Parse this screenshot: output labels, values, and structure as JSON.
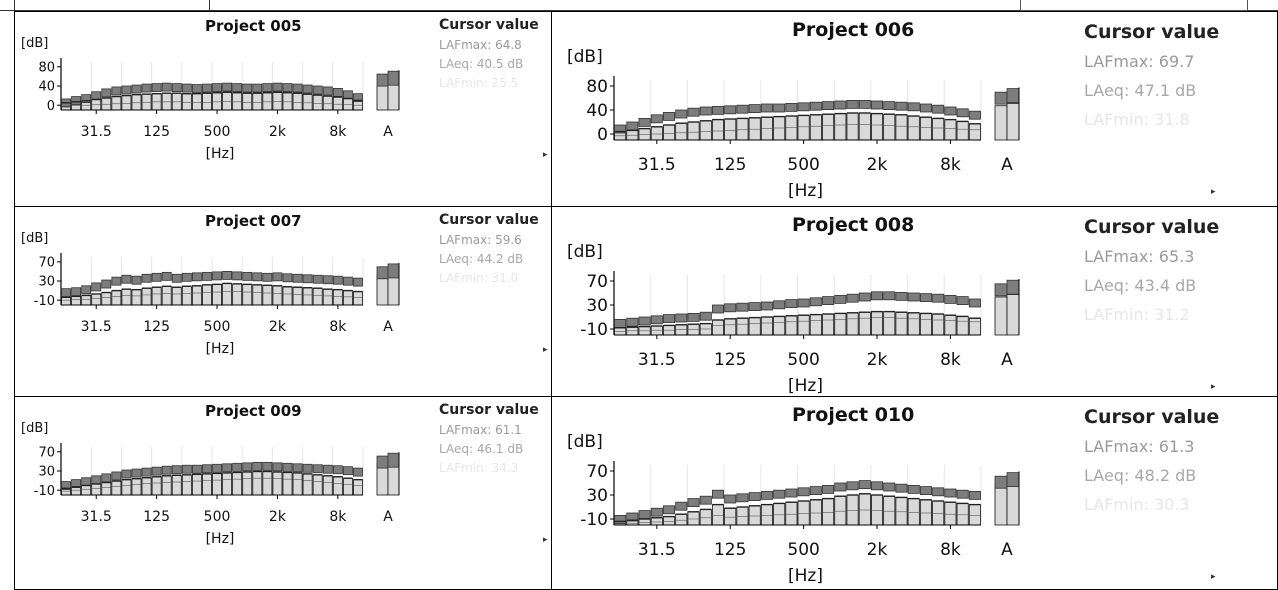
{
  "colors": {
    "max": "#7d7d7d",
    "eq": "#222222",
    "min": "#d9d9d9",
    "grid": "#e2e6ee",
    "axis": "#000000"
  },
  "arrow_glyph": "▸",
  "chart_data": [
    {
      "type": "bar",
      "title": "Project 005",
      "ylabel": "[dB]",
      "xlabel": "[Hz]",
      "y_ticks": [
        80,
        40,
        0
      ],
      "ylim": [
        -10,
        90
      ],
      "x_ticks": [
        "31.5",
        "125",
        "500",
        "2k",
        "8k"
      ],
      "total_label": "A",
      "series": [
        {
          "name": "LAFmax",
          "values": [
            13,
            18,
            22,
            28,
            34,
            38,
            40,
            42,
            44,
            45,
            46,
            45,
            44,
            43,
            44,
            45,
            46,
            45,
            44,
            44,
            45,
            46,
            45,
            44,
            42,
            40,
            38,
            35,
            30,
            24
          ]
        },
        {
          "name": "LAeq",
          "values": [
            5,
            7,
            9,
            12,
            15,
            18,
            20,
            22,
            23,
            24,
            25,
            25,
            24,
            24,
            25,
            26,
            27,
            26,
            25,
            25,
            26,
            27,
            26,
            25,
            23,
            21,
            19,
            17,
            14,
            10
          ]
        },
        {
          "name": "LAFmin",
          "values": [
            -2,
            -1,
            0,
            1,
            2,
            3,
            4,
            5,
            6,
            7,
            7,
            7,
            6,
            6,
            6,
            7,
            8,
            7,
            6,
            6,
            7,
            8,
            7,
            6,
            5,
            4,
            3,
            2,
            1,
            0
          ]
        }
      ],
      "total_bars": {
        "LAFmax": 64.8,
        "LAeq": 40.5,
        "LAFmin": 25.5
      },
      "cursor": {
        "title": "Cursor value",
        "max": "LAFmax: 64.8",
        "eq": "LAeq: 40.5 dB",
        "min": "LAFmin: 25.5"
      }
    },
    {
      "type": "bar",
      "title": "Project 006",
      "ylabel": "[dB]",
      "xlabel": "[Hz]",
      "y_ticks": [
        80,
        40,
        0
      ],
      "ylim": [
        -10,
        90
      ],
      "x_ticks": [
        "31.5",
        "125",
        "500",
        "2k",
        "8k"
      ],
      "total_label": "A",
      "series": [
        {
          "name": "LAFmax",
          "values": [
            15,
            20,
            26,
            32,
            36,
            40,
            43,
            45,
            46,
            47,
            48,
            49,
            50,
            50,
            51,
            52,
            53,
            54,
            55,
            56,
            56,
            55,
            54,
            53,
            52,
            50,
            48,
            45,
            42,
            38
          ]
        },
        {
          "name": "LAeq",
          "values": [
            4,
            6,
            9,
            12,
            15,
            18,
            20,
            22,
            24,
            25,
            26,
            27,
            28,
            29,
            30,
            31,
            32,
            33,
            34,
            35,
            35,
            34,
            33,
            32,
            30,
            28,
            26,
            24,
            21,
            17
          ]
        },
        {
          "name": "LAFmin",
          "values": [
            -3,
            -2,
            -1,
            0,
            1,
            2,
            3,
            4,
            5,
            6,
            7,
            8,
            9,
            10,
            11,
            12,
            13,
            14,
            15,
            16,
            16,
            15,
            14,
            13,
            12,
            11,
            10,
            9,
            8,
            7
          ]
        }
      ],
      "total_bars": {
        "LAFmax": 69.7,
        "LAeq": 47.1,
        "LAFmin": 31.8
      },
      "cursor": {
        "title": "Cursor value",
        "max": "LAFmax: 69.7",
        "eq": "LAeq: 47.1 dB",
        "min": "LAFmin: 31.8"
      }
    },
    {
      "type": "bar",
      "title": "Project 007",
      "ylabel": "[dB]",
      "xlabel": "[Hz]",
      "y_ticks": [
        70,
        30,
        -10
      ],
      "ylim": [
        -20,
        80
      ],
      "x_ticks": [
        "31.5",
        "125",
        "500",
        "2k",
        "8k"
      ],
      "total_label": "A",
      "series": [
        {
          "name": "LAFmax",
          "values": [
            14,
            16,
            20,
            26,
            32,
            38,
            42,
            40,
            44,
            46,
            48,
            44,
            46,
            47,
            48,
            49,
            50,
            49,
            48,
            47,
            46,
            47,
            45,
            44,
            43,
            42,
            41,
            40,
            38,
            36
          ]
        },
        {
          "name": "LAeq",
          "values": [
            -4,
            -2,
            0,
            3,
            6,
            10,
            13,
            12,
            15,
            17,
            19,
            17,
            19,
            20,
            22,
            23,
            25,
            24,
            23,
            22,
            21,
            20,
            18,
            17,
            16,
            15,
            13,
            12,
            10,
            8
          ]
        },
        {
          "name": "LAFmin",
          "values": [
            -10,
            -9,
            -8,
            -6,
            -4,
            -2,
            0,
            -1,
            1,
            3,
            4,
            3,
            4,
            5,
            6,
            7,
            8,
            8,
            7,
            6,
            5,
            4,
            3,
            2,
            1,
            0,
            -1,
            -2,
            -3,
            -4
          ]
        }
      ],
      "total_bars": {
        "LAFmax": 59.6,
        "LAeq": 44.2,
        "LAFmin": 31.0
      },
      "cursor": {
        "title": "Cursor value",
        "max": "LAFmax: 59.6",
        "eq": "LAeq: 44.2 dB",
        "min": "LAFmin: 31.0"
      }
    },
    {
      "type": "bar",
      "title": "Project 008",
      "ylabel": "[dB]",
      "xlabel": "[Hz]",
      "y_ticks": [
        70,
        30,
        -10
      ],
      "ylim": [
        -20,
        80
      ],
      "x_ticks": [
        "31.5",
        "125",
        "500",
        "2k",
        "8k"
      ],
      "total_label": "A",
      "series": [
        {
          "name": "LAFmax",
          "values": [
            6,
            8,
            10,
            12,
            14,
            15,
            16,
            18,
            30,
            32,
            33,
            34,
            35,
            37,
            39,
            40,
            42,
            44,
            46,
            48,
            50,
            52,
            52,
            51,
            50,
            49,
            48,
            46,
            44,
            40
          ]
        },
        {
          "name": "LAeq",
          "values": [
            -8,
            -7,
            -6,
            -5,
            -4,
            -3,
            -2,
            -1,
            5,
            7,
            8,
            9,
            10,
            11,
            12,
            13,
            14,
            15,
            16,
            17,
            18,
            19,
            19,
            18,
            17,
            16,
            15,
            13,
            11,
            8
          ]
        },
        {
          "name": "LAFmin",
          "values": [
            -14,
            -13,
            -13,
            -12,
            -12,
            -11,
            -11,
            -10,
            -4,
            -3,
            -2,
            -1,
            0,
            1,
            2,
            3,
            4,
            5,
            6,
            7,
            8,
            9,
            9,
            8,
            7,
            6,
            5,
            4,
            3,
            2
          ]
        }
      ],
      "total_bars": {
        "LAFmax": 65.3,
        "LAeq": 43.4,
        "LAFmin": 31.2
      },
      "cursor": {
        "title": "Cursor value",
        "max": "LAFmax: 65.3",
        "eq": "LAeq: 43.4 dB",
        "min": "LAFmin: 31.2"
      }
    },
    {
      "type": "bar",
      "title": "Project 009",
      "ylabel": "[dB]",
      "xlabel": "[Hz]",
      "y_ticks": [
        70,
        30,
        -10
      ],
      "ylim": [
        -20,
        80
      ],
      "x_ticks": [
        "31.5",
        "125",
        "500",
        "2k",
        "8k"
      ],
      "total_label": "A",
      "series": [
        {
          "name": "LAFmax",
          "values": [
            8,
            12,
            16,
            20,
            24,
            28,
            32,
            34,
            36,
            38,
            40,
            41,
            42,
            42,
            43,
            44,
            45,
            46,
            47,
            48,
            48,
            47,
            46,
            45,
            44,
            43,
            42,
            41,
            39,
            36
          ]
        },
        {
          "name": "LAeq",
          "values": [
            -6,
            -3,
            0,
            3,
            6,
            9,
            12,
            14,
            16,
            18,
            20,
            21,
            22,
            23,
            24,
            25,
            26,
            27,
            28,
            29,
            29,
            28,
            27,
            26,
            24,
            22,
            20,
            18,
            15,
            12
          ]
        },
        {
          "name": "LAFmin",
          "values": [
            -12,
            -10,
            -8,
            -6,
            -4,
            -2,
            0,
            2,
            4,
            5,
            6,
            7,
            8,
            9,
            10,
            11,
            12,
            13,
            14,
            15,
            15,
            14,
            13,
            12,
            10,
            8,
            6,
            4,
            2,
            0
          ]
        }
      ],
      "total_bars": {
        "LAFmax": 61.1,
        "LAeq": 46.1,
        "LAFmin": 34.3
      },
      "cursor": {
        "title": "Cursor value",
        "max": "LAFmax: 61.1",
        "eq": "LAeq: 46.1 dB",
        "min": "LAFmin: 34.3"
      }
    },
    {
      "type": "bar",
      "title": "Project 010",
      "ylabel": "[dB]",
      "xlabel": "[Hz]",
      "y_ticks": [
        70,
        30,
        -10
      ],
      "ylim": [
        -20,
        80
      ],
      "x_ticks": [
        "31.5",
        "125",
        "500",
        "2k",
        "8k"
      ],
      "total_label": "A",
      "series": [
        {
          "name": "LAFmax",
          "values": [
            -4,
            0,
            4,
            8,
            12,
            18,
            24,
            28,
            38,
            30,
            32,
            34,
            36,
            38,
            40,
            42,
            44,
            46,
            50,
            52,
            54,
            52,
            50,
            48,
            46,
            44,
            42,
            40,
            38,
            36
          ]
        },
        {
          "name": "LAeq",
          "values": [
            -14,
            -12,
            -10,
            -8,
            -6,
            -2,
            2,
            6,
            14,
            8,
            10,
            12,
            14,
            16,
            18,
            20,
            22,
            24,
            28,
            30,
            32,
            30,
            28,
            26,
            24,
            22,
            20,
            18,
            16,
            14
          ]
        },
        {
          "name": "LAFmin",
          "values": [
            -18,
            -17,
            -16,
            -15,
            -14,
            -12,
            -10,
            -8,
            -4,
            -7,
            -6,
            -5,
            -4,
            -3,
            -2,
            -1,
            0,
            1,
            3,
            4,
            5,
            4,
            3,
            2,
            1,
            0,
            -1,
            -2,
            -3,
            -4
          ]
        }
      ],
      "total_bars": {
        "LAFmax": 61.3,
        "LAeq": 48.2,
        "LAFmin": 30.3
      },
      "cursor": {
        "title": "Cursor value",
        "max": "LAFmax: 61.3",
        "eq": "LAeq: 48.2 dB",
        "min": "LAFmin: 30.3"
      }
    }
  ]
}
